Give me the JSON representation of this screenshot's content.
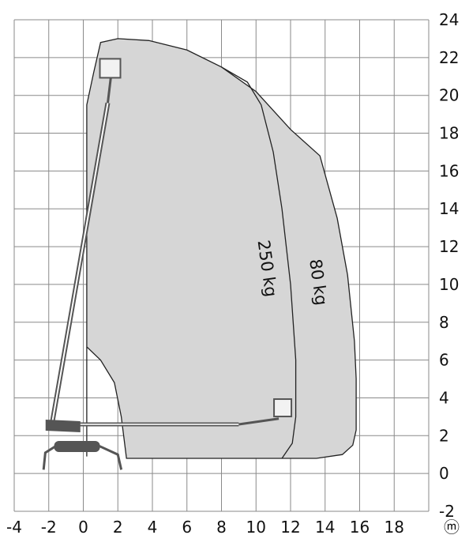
{
  "chart_data": {
    "type": "area",
    "title": "",
    "xlabel": "",
    "ylabel": "",
    "unit_label": "ⓜ",
    "x_ticks": [
      "-4",
      "-2",
      "0",
      "2",
      "4",
      "6",
      "8",
      "10",
      "12",
      "14",
      "16",
      "18"
    ],
    "y_ticks": [
      "-2",
      "0",
      "2",
      "4",
      "6",
      "8",
      "10",
      "12",
      "14",
      "16",
      "18",
      "20",
      "22",
      "24"
    ],
    "xlim": [
      -4,
      20
    ],
    "ylim": [
      -2,
      24
    ],
    "grid": true,
    "colors": {
      "envelope_80": "#d6d6d6",
      "grid": "#8a8a8a",
      "outline": "#222222",
      "machine": "#555555"
    },
    "series": [
      {
        "name": "80 kg",
        "points": [
          [
            0.2,
            0.9
          ],
          [
            0.2,
            19.5
          ],
          [
            0.6,
            21.2
          ],
          [
            1.0,
            22.8
          ],
          [
            2.0,
            23.0
          ],
          [
            3.8,
            22.9
          ],
          [
            6.0,
            22.4
          ],
          [
            8.0,
            21.5
          ],
          [
            10.0,
            20.2
          ],
          [
            12.0,
            18.2
          ],
          [
            13.7,
            16.8
          ],
          [
            14.7,
            13.5
          ],
          [
            15.3,
            10.5
          ],
          [
            15.7,
            7.0
          ],
          [
            15.8,
            5.0
          ],
          [
            15.8,
            2.3
          ],
          [
            15.6,
            1.5
          ],
          [
            15.0,
            1.0
          ],
          [
            13.5,
            0.8
          ],
          [
            2.5,
            0.8
          ],
          [
            2.2,
            3.0
          ],
          [
            1.8,
            4.8
          ],
          [
            1.0,
            6.0
          ],
          [
            0.2,
            6.7
          ]
        ]
      },
      {
        "name": "250 kg",
        "points": [
          [
            8.0,
            21.5
          ],
          [
            9.5,
            20.7
          ],
          [
            10.3,
            19.5
          ],
          [
            11.0,
            17.0
          ],
          [
            11.5,
            14.0
          ],
          [
            12.0,
            10.0
          ],
          [
            12.3,
            6.0
          ],
          [
            12.3,
            3.0
          ],
          [
            12.1,
            1.6
          ],
          [
            11.5,
            0.8
          ]
        ]
      }
    ],
    "machine": {
      "platform_high": [
        1.6,
        21.6
      ],
      "platform_low": [
        11.5,
        3.6
      ],
      "base": [
        -0.5,
        1.3
      ],
      "boom_pivot": [
        -2.0,
        2.6
      ]
    }
  }
}
